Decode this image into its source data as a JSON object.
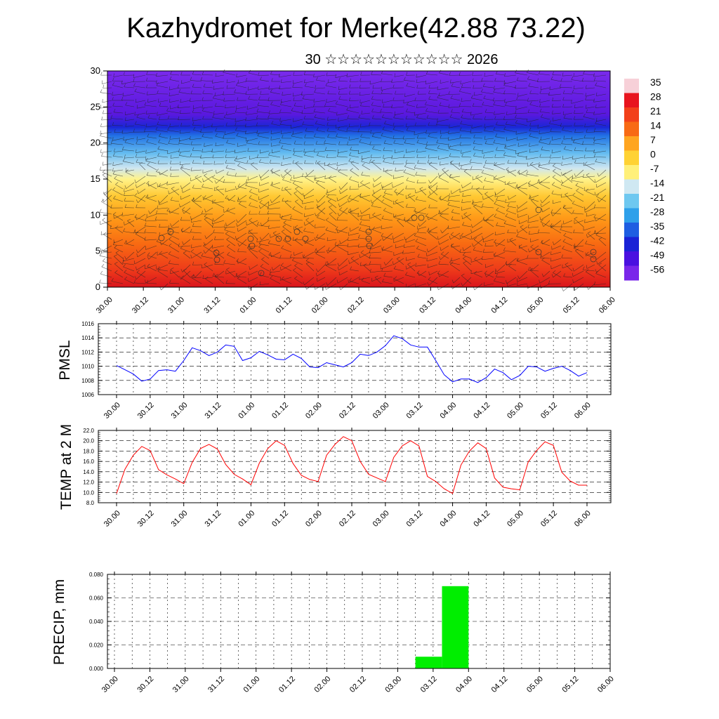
{
  "header": {
    "title": "Kazhydromet for Merke(42.88 73.22)",
    "subtitle": "30 ☆☆☆☆☆☆☆☆☆☆☆ 2026"
  },
  "time_labels": [
    "30.00",
    "30.12",
    "31.00",
    "31.12",
    "01.00",
    "01.12",
    "02.00",
    "02.12",
    "03.00",
    "03.12",
    "04.00",
    "04.12",
    "05.00",
    "05.12",
    "06.00"
  ],
  "colors": {
    "pmsl_line": "#0000ff",
    "temp_line": "#ff0000",
    "precip_bar": "#00ee00"
  },
  "colorbar": {
    "labels": [
      "35",
      "28",
      "21",
      "14",
      "7",
      "0",
      "-7",
      "-14",
      "-21",
      "-28",
      "-35",
      "-42",
      "-49",
      "-56"
    ],
    "colors": [
      "#f7d0d8",
      "#e8141e",
      "#f2401a",
      "#f86a14",
      "#ffa520",
      "#ffd234",
      "#fff07a",
      "#cfe8f2",
      "#6ec8f0",
      "#2ea0ea",
      "#1e5ee2",
      "#1a22d6",
      "#4a10e0",
      "#7a26ea"
    ]
  },
  "chart_data": [
    {
      "type": "heatmap",
      "ylim": [
        0,
        30
      ],
      "yticks": [
        "0",
        "5",
        "10",
        "15",
        "20",
        "25",
        "30"
      ],
      "xtick_labels_ref": "time_labels",
      "temperature_bands": [
        {
          "from": 0,
          "to": 4,
          "value_c": 28
        },
        {
          "from": 4,
          "to": 8,
          "value_c": 21
        },
        {
          "from": 8,
          "to": 12,
          "value_c": 10
        },
        {
          "from": 12,
          "to": 15,
          "value_c": 0
        },
        {
          "from": 15,
          "to": 17,
          "value_c": -14
        },
        {
          "from": 17,
          "to": 21,
          "value_c": -28
        },
        {
          "from": 21,
          "to": 22.5,
          "value_c": -49
        },
        {
          "from": 22.5,
          "to": 30,
          "value_c": -56
        }
      ],
      "overlay": "wind barbs"
    },
    {
      "type": "line",
      "ylabel": "PMSL",
      "ylim": [
        1006,
        1016
      ],
      "yticks": [
        "1006",
        "1008",
        "1010",
        "1012",
        "1014",
        "1016"
      ],
      "series": [
        {
          "values": [
            1010.1,
            1009.5,
            1008.9,
            1007.9,
            1008.2,
            1009.4,
            1009.5,
            1009.3,
            1010.8,
            1012.6,
            1012.2,
            1011.5,
            1012.0,
            1013.0,
            1012.8,
            1010.8,
            1011.2,
            1012.1,
            1011.6,
            1011.0,
            1010.9,
            1011.7,
            1011.1,
            1009.9,
            1009.8,
            1010.5,
            1010.2,
            1009.9,
            1010.5,
            1011.7,
            1011.5,
            1012.0,
            1012.9,
            1014.3,
            1013.9,
            1013.0,
            1012.7,
            1012.7,
            1010.8,
            1008.8,
            1007.8,
            1008.2,
            1008.2,
            1007.7,
            1008.4,
            1009.6,
            1009.1,
            1008.1,
            1008.7,
            1010.0,
            1009.9,
            1009.3,
            1009.7,
            1010.0,
            1009.4,
            1008.6,
            1009.1
          ]
        }
      ]
    },
    {
      "type": "line",
      "ylabel": "TEMP at 2 M",
      "ylim": [
        8,
        22
      ],
      "yticks": [
        "8.0",
        "10.0",
        "12.0",
        "14.0",
        "16.0",
        "18.0",
        "20.0",
        "22.0"
      ],
      "series": [
        {
          "values": [
            9.8,
            14.5,
            17.2,
            18.9,
            18.1,
            14.4,
            13.4,
            12.6,
            11.7,
            15.8,
            18.5,
            19.3,
            18.4,
            15.4,
            13.5,
            12.6,
            11.5,
            15.7,
            18.5,
            20.0,
            19.1,
            15.6,
            13.3,
            12.5,
            12.1,
            17.2,
            19.3,
            20.8,
            20.0,
            16.0,
            13.5,
            12.8,
            12.1,
            16.8,
            19.0,
            20.0,
            19.0,
            13.1,
            12.1,
            10.7,
            9.8,
            15.3,
            18.0,
            19.6,
            18.5,
            12.8,
            11.0,
            10.7,
            10.5,
            15.9,
            18.1,
            19.8,
            19.1,
            13.9,
            12.2,
            11.4,
            11.4
          ]
        }
      ]
    },
    {
      "type": "bar",
      "ylabel": "PRECIP, mm",
      "ylim": [
        0,
        0.08
      ],
      "yticks": [
        "0.000",
        "0.020",
        "0.040",
        "0.060",
        "0.080"
      ],
      "bars": [
        {
          "from_step": 34,
          "to_step": 37,
          "value": 0.01
        },
        {
          "from_step": 37,
          "to_step": 40,
          "value": 0.07
        }
      ]
    }
  ]
}
